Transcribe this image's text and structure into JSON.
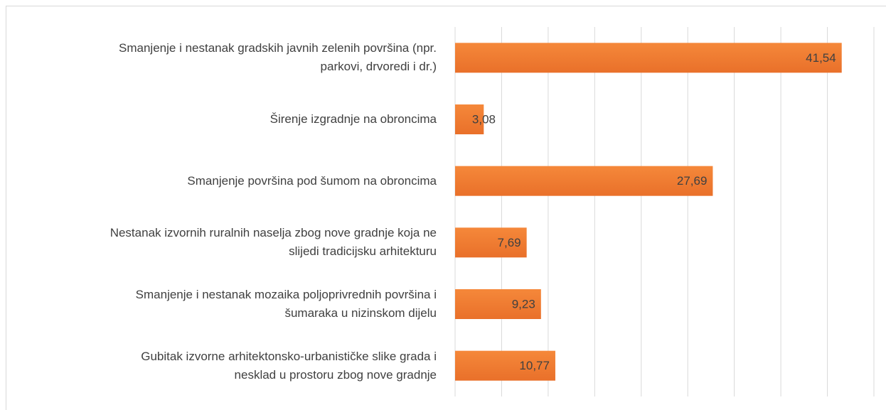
{
  "chart_data": {
    "type": "bar",
    "orientation": "horizontal",
    "categories": [
      "Smanjenje i nestanak gradskih javnih zelenih površina (npr.\nparkovi, drvoredi i dr.)",
      "Širenje izgradnje na obroncima",
      "Smanjenje površina pod šumom na obroncima",
      "Nestanak izvornih ruralnih naselja zbog nove gradnje koja ne\nslijedi tradicijsku arhitekturu",
      "Smanjenje i nestanak mozaika poljoprivrednih površina i\nšumaraka u nizinskom dijelu",
      "Gubitak izvorne arhitektonsko-urbanističke slike grada i\nnesklad u prostoru zbog nove gradnje"
    ],
    "values": [
      41.54,
      3.08,
      27.69,
      7.69,
      9.23,
      10.77
    ],
    "value_labels": [
      "41,54",
      "3,08",
      "27,69",
      "7,69",
      "9,23",
      "10,77"
    ],
    "color": "#ef7b2a",
    "xlim": [
      0,
      45
    ],
    "xticks": [
      0,
      5,
      10,
      15,
      20,
      25,
      30,
      35,
      40,
      45
    ],
    "grid": true
  }
}
